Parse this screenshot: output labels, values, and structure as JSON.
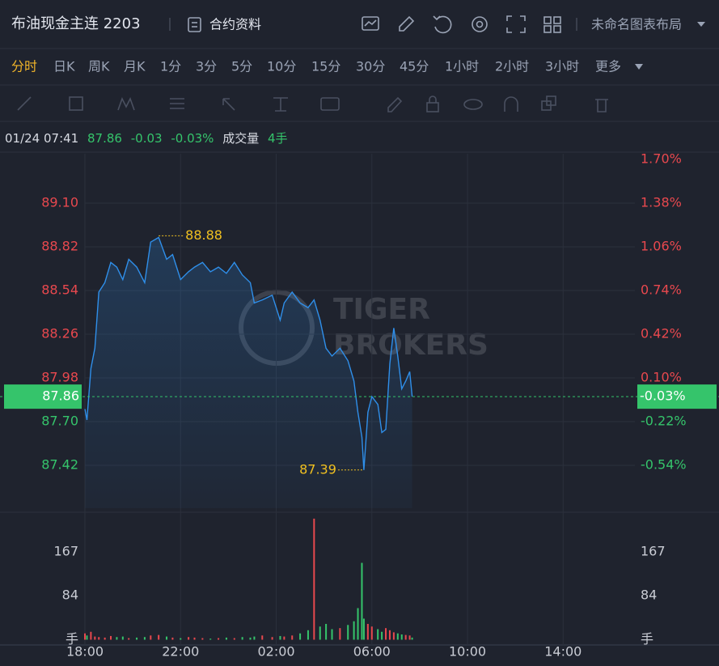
{
  "header": {
    "title": "布油现金主连 2203",
    "contract_info": "合约资料",
    "layout_name": "未命名图表布局"
  },
  "timeframes": {
    "items": [
      "分时",
      "日K",
      "周K",
      "月K",
      "1分",
      "3分",
      "5分",
      "10分",
      "15分",
      "30分",
      "45分",
      "1小时",
      "2小时",
      "3小时"
    ],
    "active": 0,
    "more": "更多"
  },
  "quote": {
    "time": "01/24 07:41",
    "price": "87.86",
    "change": "-0.03",
    "change_pct": "-0.03%",
    "volume_label": "成交量",
    "volume": "4手"
  },
  "watermark": [
    "TIGER",
    "BROKERS"
  ],
  "chart_data": [
    {
      "type": "line",
      "x": [
        "18:00",
        "18:05",
        "18:15",
        "18:25",
        "18:35",
        "18:50",
        "19:05",
        "19:20",
        "19:35",
        "19:50",
        "20:10",
        "20:30",
        "20:45",
        "21:05",
        "21:25",
        "21:40",
        "22:00",
        "22:20",
        "22:35",
        "22:55",
        "23:15",
        "23:35",
        "23:55",
        "00:15",
        "00:35",
        "00:55",
        "01:05",
        "01:25",
        "01:50",
        "02:10",
        "02:20",
        "02:40",
        "03:00",
        "03:20",
        "03:35",
        "03:50",
        "04:05",
        "04:20",
        "04:40",
        "05:00",
        "05:15",
        "05:25",
        "05:35",
        "05:40",
        "05:50",
        "06:00",
        "06:15",
        "06:25",
        "06:35",
        "06:45",
        "06:55",
        "07:05",
        "07:15",
        "07:25",
        "07:35",
        "07:41"
      ],
      "series": [
        {
          "color": "#2f8fea",
          "values": [
            87.78,
            87.71,
            88.04,
            88.17,
            88.53,
            88.59,
            88.72,
            88.69,
            88.61,
            88.74,
            88.69,
            88.59,
            88.85,
            88.88,
            88.74,
            88.77,
            88.61,
            88.66,
            88.69,
            88.72,
            88.66,
            88.69,
            88.65,
            88.72,
            88.64,
            88.59,
            88.46,
            88.48,
            88.51,
            88.35,
            88.46,
            88.53,
            88.46,
            88.43,
            88.48,
            88.35,
            88.17,
            88.12,
            88.17,
            88.09,
            87.96,
            87.76,
            87.6,
            87.39,
            87.76,
            87.86,
            87.81,
            87.63,
            87.65,
            88.07,
            88.3,
            88.12,
            87.91,
            87.96,
            88.02,
            87.86
          ]
        }
      ],
      "xlim": [
        "18:00",
        "17:00"
      ],
      "xticks": [
        "18:00",
        "22:00",
        "02:00",
        "06:00",
        "10:00",
        "14:00"
      ],
      "ylim": [
        87.145,
        89.38
      ],
      "yticks": [
        {
          "value": 89.1,
          "label": "89.10"
        },
        88.82,
        88.54,
        88.26,
        87.98,
        {
          "value": 87.7,
          "label": "87.70"
        },
        87.42
      ],
      "y2lim": [
        -0.855,
        1.7
      ],
      "y2ticks": [
        {
          "value": 1.7,
          "label": "1.70%"
        },
        {
          "value": 1.38,
          "label": "1.38%"
        },
        {
          "value": 1.06,
          "label": "1.06%"
        },
        {
          "value": 0.74,
          "label": "0.74%"
        },
        {
          "value": 0.42,
          "label": "0.42%"
        },
        {
          "value": 0.1,
          "label": "0.10%"
        },
        {
          "value": -0.22,
          "label": "-0.22%"
        },
        {
          "value": -0.54,
          "label": "-0.54%"
        }
      ],
      "up_color": "#e8484e",
      "down_color": "#35c46b",
      "grid": true
    },
    {
      "type": "bar",
      "x": [
        "18:00",
        "18:05",
        "18:15",
        "18:25",
        "18:35",
        "18:50",
        "19:05",
        "19:20",
        "19:35",
        "19:50",
        "20:10",
        "20:30",
        "20:45",
        "21:05",
        "21:25",
        "21:40",
        "22:00",
        "22:20",
        "22:35",
        "22:55",
        "23:15",
        "23:35",
        "23:55",
        "00:15",
        "00:35",
        "00:55",
        "01:05",
        "01:25",
        "01:50",
        "02:10",
        "02:20",
        "02:40",
        "03:00",
        "03:20",
        "03:35",
        "03:50",
        "04:05",
        "04:20",
        "04:40",
        "05:00",
        "05:15",
        "05:25",
        "05:35",
        "05:40",
        "05:50",
        "06:00",
        "06:15",
        "06:25",
        "06:35",
        "06:45",
        "06:55",
        "07:05",
        "07:15",
        "07:25",
        "07:35",
        "07:41"
      ],
      "values": [
        12,
        8,
        15,
        6,
        5,
        4,
        7,
        5,
        6,
        3,
        4,
        5,
        8,
        9,
        6,
        4,
        3,
        5,
        4,
        3,
        2,
        3,
        4,
        3,
        5,
        4,
        6,
        8,
        5,
        7,
        6,
        8,
        12,
        18,
        230,
        25,
        30,
        20,
        22,
        28,
        35,
        60,
        146,
        40,
        30,
        25,
        20,
        15,
        22,
        18,
        14,
        12,
        10,
        9,
        8,
        4
      ],
      "ylim": [
        -10,
        236
      ],
      "yticks": [
        {
          "value": 0,
          "label": "手"
        },
        84,
        167
      ],
      "up_color": "#e8484e",
      "down_color": "#35c46b"
    }
  ]
}
